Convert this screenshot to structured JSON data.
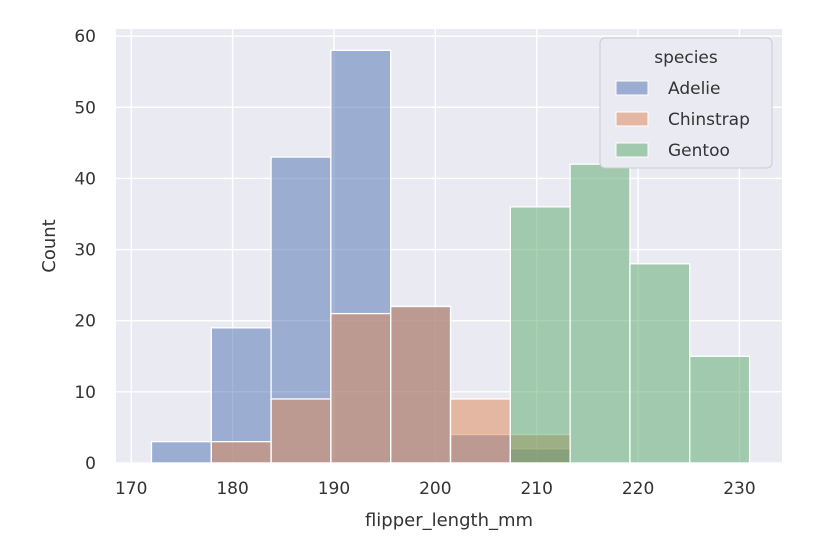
{
  "chart_data": {
    "type": "bar",
    "subtype": "overlapping-histogram",
    "xlabel": "flipper_length_mm",
    "ylabel": "Count",
    "xlim": [
      168.5,
      234.2
    ],
    "ylim": [
      0,
      61
    ],
    "xticks": [
      170,
      180,
      190,
      200,
      210,
      220,
      230
    ],
    "yticks": [
      0,
      10,
      20,
      30,
      40,
      50,
      60
    ],
    "grid": true,
    "legend_title": "species",
    "legend_position": "top-right",
    "bin_edges": [
      172.0,
      177.9,
      183.8,
      189.7,
      195.6,
      201.5,
      207.4,
      213.3,
      219.2,
      225.1,
      231.0
    ],
    "series": [
      {
        "name": "Adelie",
        "color": "#4c72b0",
        "values": [
          3,
          19,
          43,
          58,
          22,
          4,
          2,
          0,
          0,
          0
        ]
      },
      {
        "name": "Chinstrap",
        "color": "#dd8452",
        "values": [
          0,
          3,
          9,
          21,
          22,
          9,
          4,
          0,
          0,
          0
        ]
      },
      {
        "name": "Gentoo",
        "color": "#55a868",
        "values": [
          0,
          0,
          0,
          0,
          0,
          0,
          36,
          42,
          28,
          15
        ]
      }
    ]
  }
}
